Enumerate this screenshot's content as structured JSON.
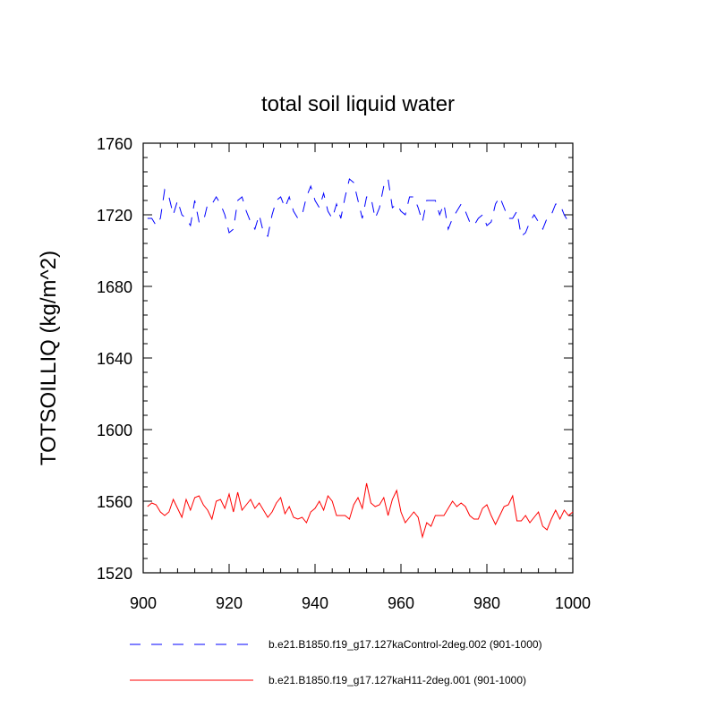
{
  "chart_data": {
    "type": "line",
    "title": "total soil liquid water",
    "xlabel": "",
    "ylabel": "TOTSOILLIQ  (kg/m^2)",
    "xlim": [
      900,
      1000
    ],
    "ylim": [
      1520,
      1760
    ],
    "xticks": [
      900,
      920,
      940,
      960,
      980,
      1000
    ],
    "yticks": [
      1520,
      1560,
      1600,
      1640,
      1680,
      1720,
      1760
    ],
    "x": [
      901,
      902,
      903,
      904,
      905,
      906,
      907,
      908,
      909,
      910,
      911,
      912,
      913,
      914,
      915,
      916,
      917,
      918,
      919,
      920,
      921,
      922,
      923,
      924,
      925,
      926,
      927,
      928,
      929,
      930,
      931,
      932,
      933,
      934,
      935,
      936,
      937,
      938,
      939,
      940,
      941,
      942,
      943,
      944,
      945,
      946,
      947,
      948,
      949,
      950,
      951,
      952,
      953,
      954,
      955,
      956,
      957,
      958,
      959,
      960,
      961,
      962,
      963,
      964,
      965,
      966,
      967,
      968,
      969,
      970,
      971,
      972,
      973,
      974,
      975,
      976,
      977,
      978,
      979,
      980,
      981,
      982,
      983,
      984,
      985,
      986,
      987,
      988,
      989,
      990,
      991,
      992,
      993,
      994,
      995,
      996,
      997,
      998,
      999,
      1000
    ],
    "series": [
      {
        "name": "b.e21.B1850.f19_g17.127kaControl-2deg.002 (901-1000)",
        "color": "#0000ff",
        "dash": "dashed",
        "values": [
          1718,
          1718,
          1714,
          1718,
          1734,
          1730,
          1720,
          1728,
          1720,
          1718,
          1714,
          1728,
          1716,
          1716,
          1726,
          1726,
          1730,
          1726,
          1720,
          1710,
          1712,
          1728,
          1730,
          1722,
          1716,
          1712,
          1720,
          1710,
          1708,
          1720,
          1728,
          1730,
          1724,
          1730,
          1722,
          1718,
          1720,
          1730,
          1736,
          1728,
          1724,
          1732,
          1722,
          1718,
          1726,
          1718,
          1730,
          1740,
          1738,
          1728,
          1718,
          1730,
          1730,
          1718,
          1724,
          1736,
          1740,
          1724,
          1726,
          1722,
          1720,
          1730,
          1730,
          1724,
          1716,
          1728,
          1728,
          1728,
          1720,
          1726,
          1712,
          1718,
          1722,
          1726,
          1722,
          1716,
          1714,
          1718,
          1720,
          1714,
          1716,
          1726,
          1730,
          1724,
          1718,
          1718,
          1722,
          1708,
          1710,
          1716,
          1720,
          1716,
          1712,
          1718,
          1720,
          1726,
          1726,
          1720,
          1716,
          1718
        ]
      },
      {
        "name": "b.e21.B1850.f19_g17.127kaH11-2deg.001 (901-1000)",
        "color": "#ff0000",
        "dash": "solid",
        "values": [
          1557,
          1559,
          1558,
          1554,
          1552,
          1554,
          1561,
          1556,
          1551,
          1561,
          1555,
          1562,
          1563,
          1558,
          1555,
          1550,
          1560,
          1561,
          1556,
          1564,
          1554,
          1565,
          1555,
          1558,
          1561,
          1556,
          1559,
          1555,
          1551,
          1554,
          1559,
          1562,
          1553,
          1557,
          1551,
          1550,
          1551,
          1548,
          1554,
          1556,
          1560,
          1555,
          1563,
          1560,
          1552,
          1552,
          1552,
          1550,
          1558,
          1562,
          1556,
          1570,
          1559,
          1557,
          1558,
          1562,
          1552,
          1561,
          1566,
          1554,
          1548,
          1551,
          1554,
          1551,
          1540,
          1548,
          1546,
          1552,
          1552,
          1552,
          1556,
          1560,
          1557,
          1559,
          1557,
          1552,
          1550,
          1550,
          1556,
          1558,
          1552,
          1547,
          1552,
          1557,
          1558,
          1563,
          1549,
          1549,
          1552,
          1548,
          1551,
          1554,
          1546,
          1544,
          1550,
          1555,
          1550,
          1555,
          1552,
          1554
        ]
      }
    ],
    "grid": false,
    "legend_position": "bottom"
  }
}
